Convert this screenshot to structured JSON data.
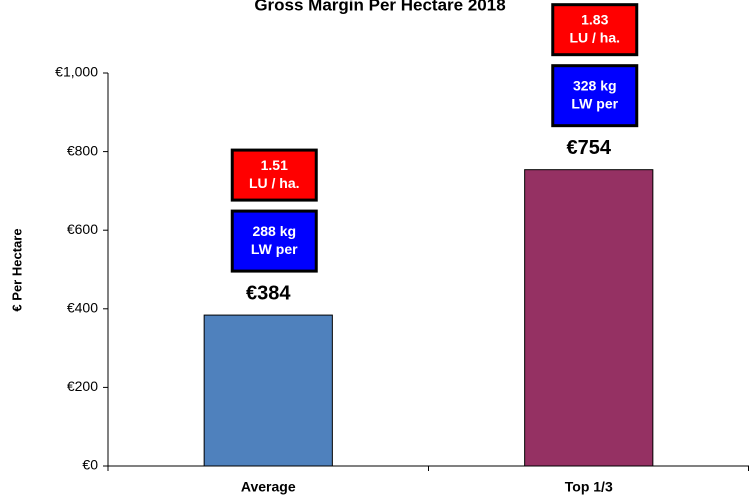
{
  "chart_data": {
    "type": "bar",
    "title": "Gross Margin Per Hectare 2018",
    "y_label": "€ Per Hectare",
    "categories": [
      "Average",
      "Top 1/3"
    ],
    "values": [
      384,
      754
    ],
    "value_labels": [
      "€384",
      "€754"
    ],
    "colors": [
      "#4f81bd",
      "#953163"
    ],
    "ylim": [
      0,
      1000
    ],
    "yticks": [
      {
        "value": 0,
        "label": "€0"
      },
      {
        "value": 200,
        "label": "€200"
      },
      {
        "value": 400,
        "label": "€400"
      },
      {
        "value": 600,
        "label": "€600"
      },
      {
        "value": 800,
        "label": "€800"
      },
      {
        "value": 1000,
        "label": "€1,000"
      }
    ],
    "annotations": [
      [
        {
          "lines": [
            "1.51",
            "LU / ha."
          ],
          "color": "#ff0000"
        },
        {
          "lines": [
            "288 kg",
            "LW per"
          ],
          "color": "#0000ff"
        }
      ],
      [
        {
          "lines": [
            "1.83",
            "LU / ha."
          ],
          "color": "#ff0000"
        },
        {
          "lines": [
            "328 kg",
            "LW per"
          ],
          "color": "#0000ff"
        }
      ]
    ]
  }
}
